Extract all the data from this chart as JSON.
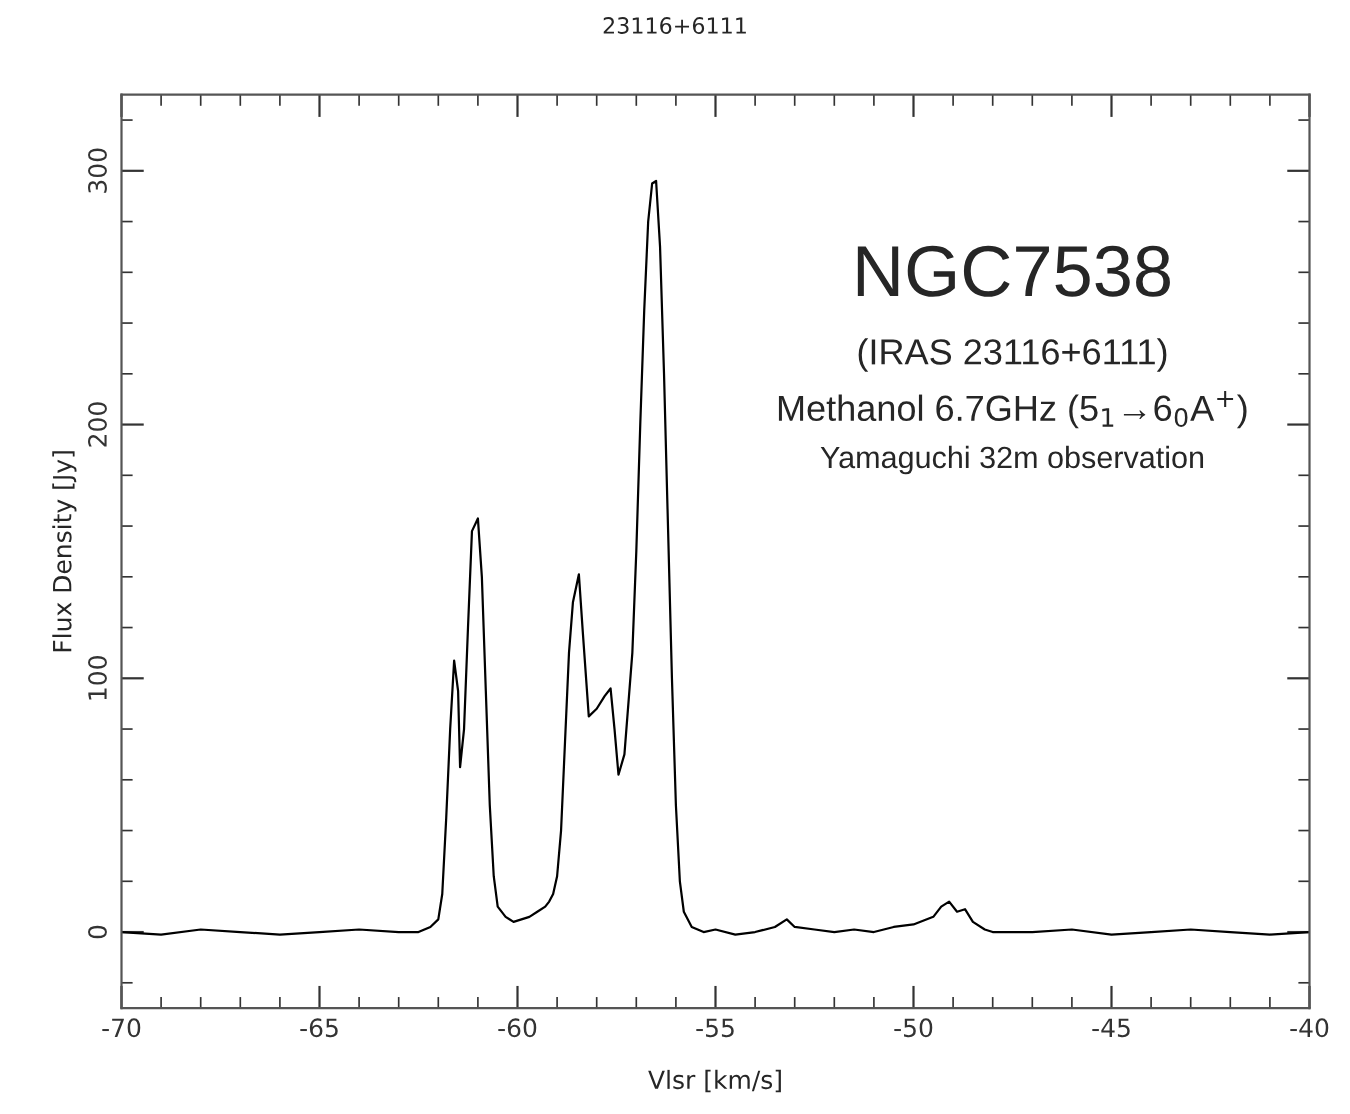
{
  "chart_data": {
    "type": "line",
    "title": "23116+6111",
    "xlabel": "Vlsr [km/s]",
    "ylabel": "Flux Density [Jy]",
    "annotations": [
      "NGC7538",
      "(IRAS 23116+6111)",
      "Methanol 6.7GHz (5$_{1}$→6$_{0}$A$^{+}$)",
      "Yamaguchi 32m observation"
    ],
    "series": [
      {
        "color": "#000000",
        "x": [
          -70,
          -69,
          -68,
          -67,
          -66,
          -65,
          -64,
          -63,
          -62.5,
          -62.2,
          -62.0,
          -61.9,
          -61.8,
          -61.7,
          -61.6,
          -61.5,
          -61.45,
          -61.35,
          -61.25,
          -61.15,
          -61.0,
          -60.9,
          -60.8,
          -60.7,
          -60.6,
          -60.5,
          -60.3,
          -60.1,
          -59.9,
          -59.7,
          -59.5,
          -59.3,
          -59.2,
          -59.1,
          -59.0,
          -58.9,
          -58.8,
          -58.7,
          -58.6,
          -58.45,
          -58.35,
          -58.2,
          -58.0,
          -57.8,
          -57.65,
          -57.55,
          -57.45,
          -57.3,
          -57.1,
          -57.0,
          -56.9,
          -56.8,
          -56.7,
          -56.6,
          -56.5,
          -56.4,
          -56.3,
          -56.2,
          -56.1,
          -56.0,
          -55.9,
          -55.8,
          -55.6,
          -55.3,
          -55,
          -54.5,
          -54,
          -53.5,
          -53.2,
          -53.0,
          -52.5,
          -52,
          -51.5,
          -51,
          -50.5,
          -50,
          -49.5,
          -49.3,
          -49.1,
          -48.9,
          -48.7,
          -48.5,
          -48.2,
          -48,
          -47,
          -46,
          -45,
          -44,
          -43,
          -42,
          -41,
          -40
        ],
        "values": [
          0,
          -1,
          1,
          0,
          -1,
          0,
          1,
          0,
          0,
          2,
          5,
          15,
          45,
          80,
          107,
          95,
          65,
          80,
          120,
          158,
          163,
          140,
          95,
          50,
          22,
          10,
          6,
          4,
          5,
          6,
          8,
          10,
          12,
          15,
          22,
          40,
          75,
          110,
          130,
          141,
          118,
          85,
          88,
          93,
          96,
          80,
          62,
          70,
          110,
          150,
          200,
          245,
          280,
          295,
          296,
          270,
          220,
          160,
          100,
          50,
          20,
          8,
          2,
          0,
          1,
          -1,
          0,
          2,
          5,
          2,
          1,
          0,
          1,
          0,
          2,
          3,
          6,
          10,
          12,
          8,
          9,
          4,
          1,
          0,
          0,
          1,
          -1,
          0,
          1,
          0,
          -1,
          0
        ]
      }
    ],
    "xlim": [
      -70,
      -40
    ],
    "ylim": [
      -30,
      330
    ],
    "xticks": [
      -70,
      -65,
      -60,
      -55,
      -50,
      -45,
      -40
    ],
    "yticks": [
      0,
      100,
      200,
      300
    ],
    "grid": false,
    "legend": false,
    "marker": "none",
    "line_style": "solid"
  }
}
